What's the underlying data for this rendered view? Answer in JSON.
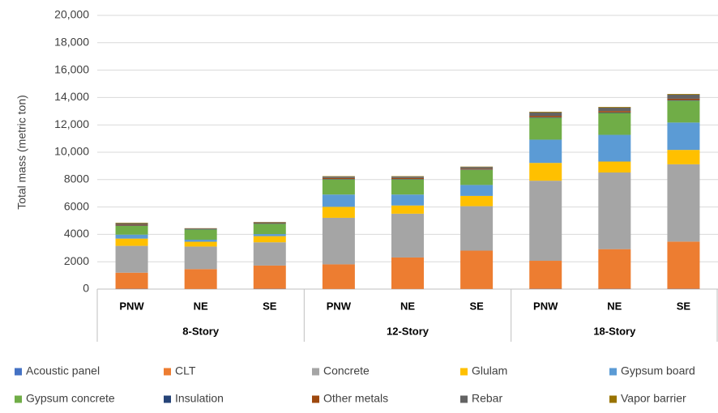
{
  "chart_data": {
    "type": "stacked_bar",
    "ylabel": "Total mass (metric ton)",
    "categories": [
      "PNW",
      "NE",
      "SE",
      "PNW",
      "NE",
      "SE",
      "PNW",
      "NE",
      "SE"
    ],
    "groups": [
      "8-Story",
      "12-Story",
      "18-Story"
    ],
    "ylim": [
      0,
      20000
    ],
    "yticks": [
      0,
      2000,
      4000,
      6000,
      8000,
      {
        "value": 10000,
        "label": "10,000"
      },
      {
        "value": 12000,
        "label": "12,000"
      },
      {
        "value": 14000,
        "label": "14,000"
      },
      {
        "value": 16000,
        "label": "16,000"
      },
      {
        "value": 18000,
        "label": "18,000"
      },
      {
        "value": 20000,
        "label": "20,000"
      }
    ],
    "grid": true,
    "legend": "bottom",
    "series": [
      {
        "name": "Acoustic panel",
        "color": "#4472c4",
        "values": [
          20,
          10,
          20,
          10,
          10,
          10,
          20,
          20,
          20
        ]
      },
      {
        "name": "CLT",
        "color": "#ed7d31",
        "values": [
          1180,
          1450,
          1700,
          1800,
          2300,
          2800,
          2050,
          2900,
          3450
        ]
      },
      {
        "name": "Concrete",
        "color": "#a5a5a5",
        "values": [
          1960,
          1650,
          1700,
          3400,
          3200,
          3250,
          5850,
          5600,
          5650
        ]
      },
      {
        "name": "Glulam",
        "color": "#ffc000",
        "values": [
          530,
          350,
          450,
          800,
          600,
          750,
          1300,
          800,
          1050
        ]
      },
      {
        "name": "Gypsum board",
        "color": "#5b9bd5",
        "values": [
          290,
          150,
          150,
          900,
          800,
          800,
          1700,
          1950,
          2000
        ]
      },
      {
        "name": "Gypsum concrete",
        "color": "#70ad47",
        "values": [
          640,
          750,
          750,
          1100,
          1100,
          1100,
          1600,
          1600,
          1600
        ]
      },
      {
        "name": "Insulation",
        "color": "#264478",
        "values": [
          30,
          20,
          20,
          30,
          30,
          30,
          40,
          40,
          40
        ]
      },
      {
        "name": "Other metals",
        "color": "#9e480e",
        "values": [
          60,
          20,
          30,
          80,
          80,
          60,
          100,
          100,
          100
        ]
      },
      {
        "name": "Rebar",
        "color": "#636363",
        "values": [
          100,
          40,
          60,
          100,
          100,
          120,
          250,
          250,
          300
        ]
      },
      {
        "name": "Vapor barrier",
        "color": "#997300",
        "values": [
          40,
          10,
          20,
          30,
          30,
          30,
          50,
          50,
          50
        ]
      }
    ]
  }
}
